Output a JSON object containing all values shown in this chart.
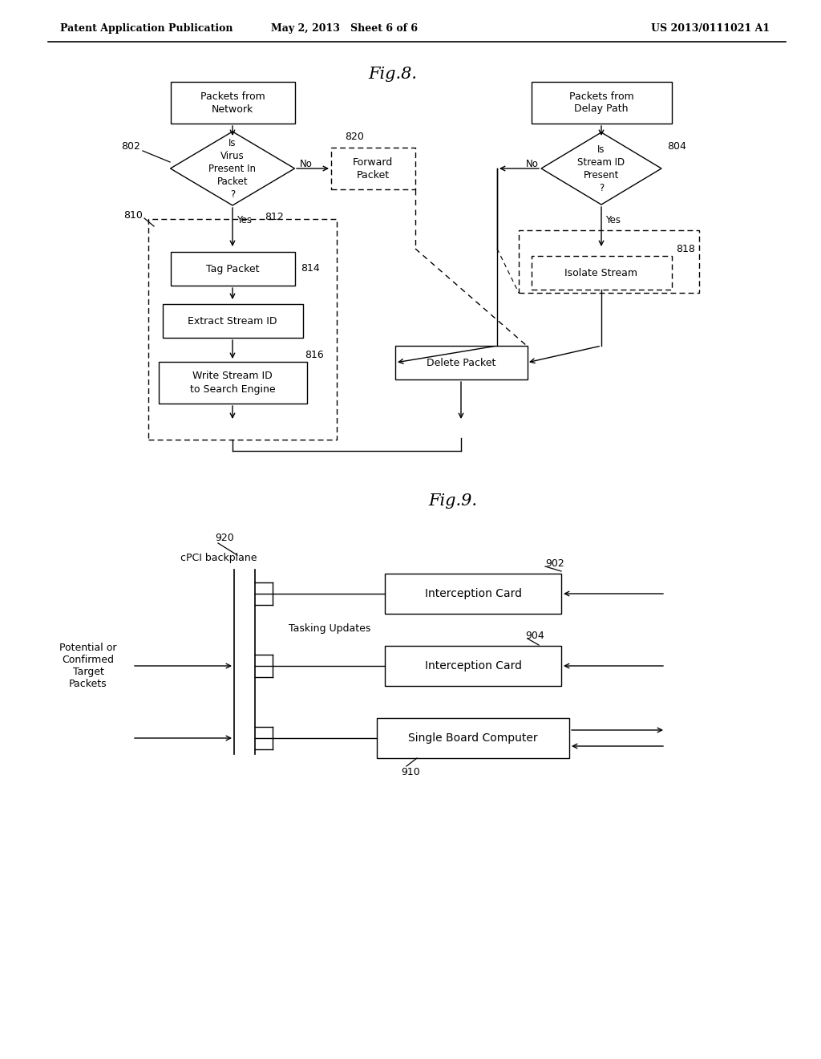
{
  "header_left": "Patent Application Publication",
  "header_mid": "May 2, 2013   Sheet 6 of 6",
  "header_right": "US 2013/0111021 A1",
  "fig8_title": "Fig.8.",
  "fig9_title": "Fig.9.",
  "bg_color": "#ffffff"
}
